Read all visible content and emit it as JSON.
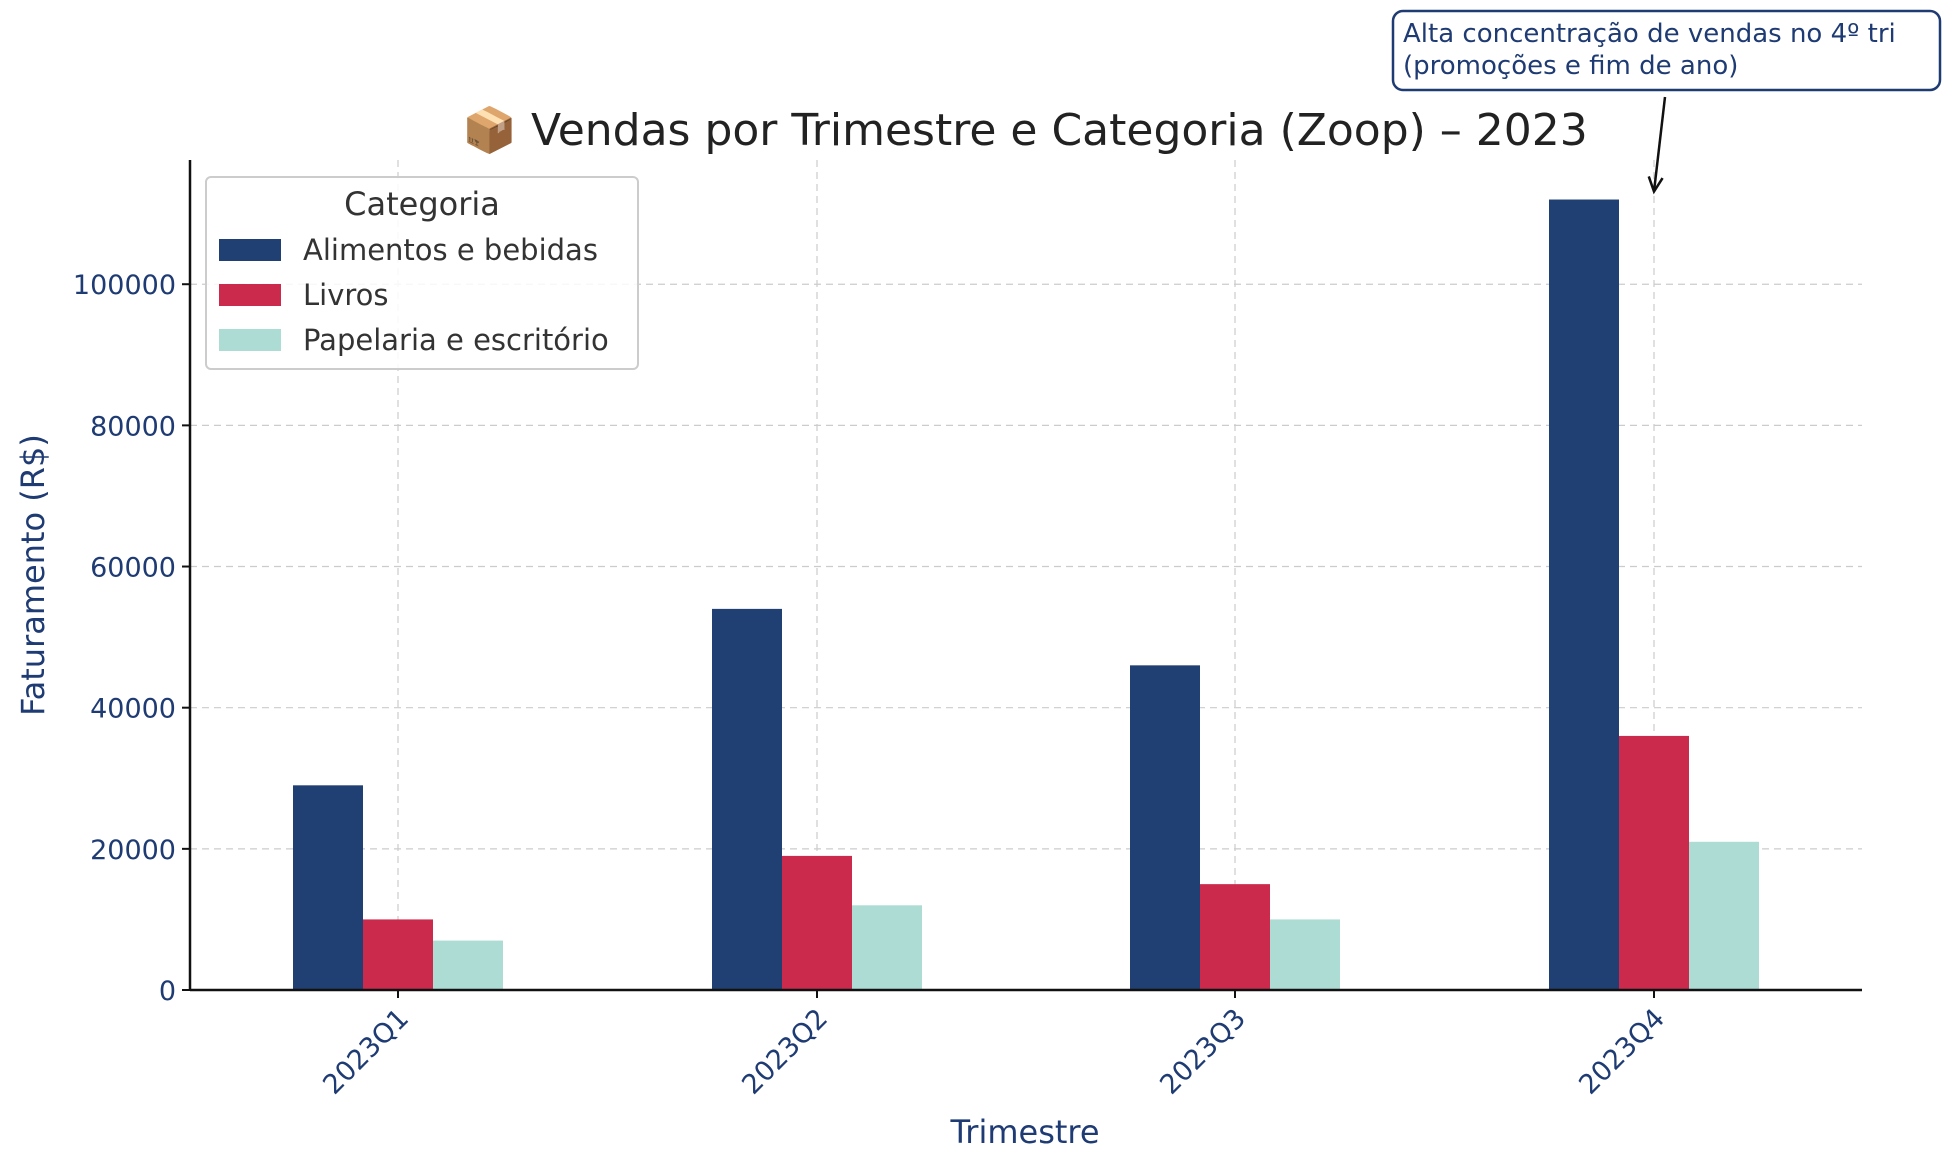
{
  "chart_data": {
    "type": "bar",
    "title": "📦 Vendas por Trimestre e Categoria (Zoop) – 2023",
    "xlabel": "Trimestre",
    "ylabel": "Faturamento (R$)",
    "categories": [
      "2023Q1",
      "2023Q2",
      "2023Q3",
      "2023Q4"
    ],
    "series": [
      {
        "name": "Alimentos e bebidas",
        "color": "#203f73",
        "values": [
          29000,
          54000,
          46000,
          112000
        ]
      },
      {
        "name": "Livros",
        "color": "#cc2a4d",
        "values": [
          10000,
          19000,
          15000,
          36000
        ]
      },
      {
        "name": "Papelaria e escritório",
        "color": "#addcd5",
        "values": [
          7000,
          12000,
          10000,
          21000
        ]
      }
    ],
    "ylim": [
      0,
      117600
    ],
    "yticks": [
      0,
      20000,
      40000,
      60000,
      80000,
      100000
    ],
    "ytick_labels": [
      "0",
      "20000",
      "40000",
      "60000",
      "80000",
      "100000"
    ],
    "grid": true,
    "legend": {
      "title": "Categoria",
      "placement": "top-left"
    },
    "annotation": {
      "lines": [
        "Alta concentração de vendas no 4º tri",
        "(promoções e fim de ano)"
      ],
      "target_category": "2023Q4",
      "target_value": 112000
    }
  }
}
